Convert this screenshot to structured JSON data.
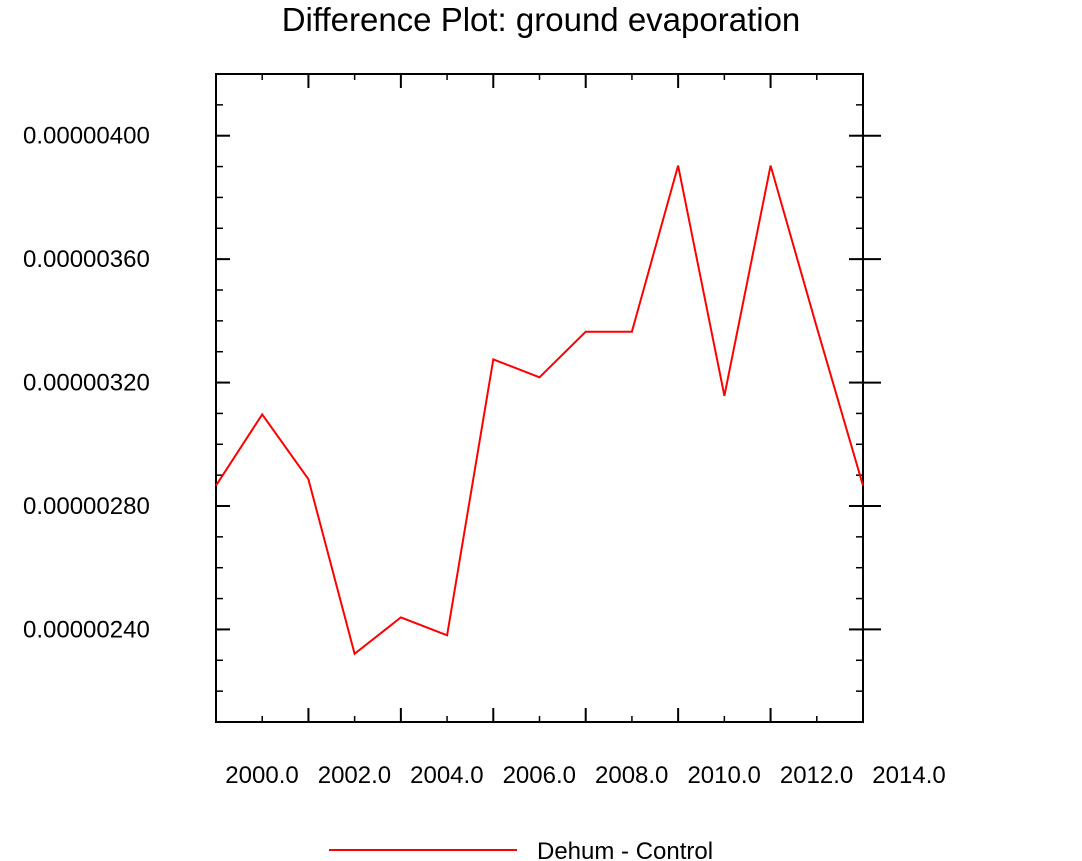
{
  "chart_data": {
    "type": "line",
    "title": "Difference Plot: ground evaporation",
    "xlabel": "",
    "ylabel": "",
    "x": [
      2000,
      2001,
      2002,
      2003,
      2004,
      2005,
      2006,
      2007,
      2008,
      2009,
      2010,
      2011,
      2012,
      2013,
      2014
    ],
    "xlim": [
      2000,
      2014
    ],
    "ylim": [
      2.1e-06,
      4.2e-06
    ],
    "x_ticks": [
      2000,
      2002,
      2004,
      2006,
      2008,
      2010,
      2012,
      2014
    ],
    "x_tick_labels": [
      "2000.0",
      "2002.0",
      "2004.0",
      "2006.0",
      "2008.0",
      "2010.0",
      "2012.0",
      "2014.0"
    ],
    "y_ticks": [
      2.4e-06,
      2.8e-06,
      3.2e-06,
      3.6e-06,
      4e-06
    ],
    "y_tick_labels": [
      "0.00000240",
      "0.00000280",
      "0.00000320",
      "0.00000360",
      "0.00000400"
    ],
    "series": [
      {
        "name": "Dehum - Control",
        "color": "#ff0000",
        "values": [
          2.866e-06,
          3.097e-06,
          2.887e-06,
          2.321e-06,
          2.439e-06,
          2.381e-06,
          3.275e-06,
          3.217e-06,
          3.365e-06,
          3.365e-06,
          3.903e-06,
          3.157e-06,
          3.903e-06,
          3.379e-06,
          2.866e-06
        ]
      }
    ],
    "grid": false,
    "legend": "bottom"
  }
}
